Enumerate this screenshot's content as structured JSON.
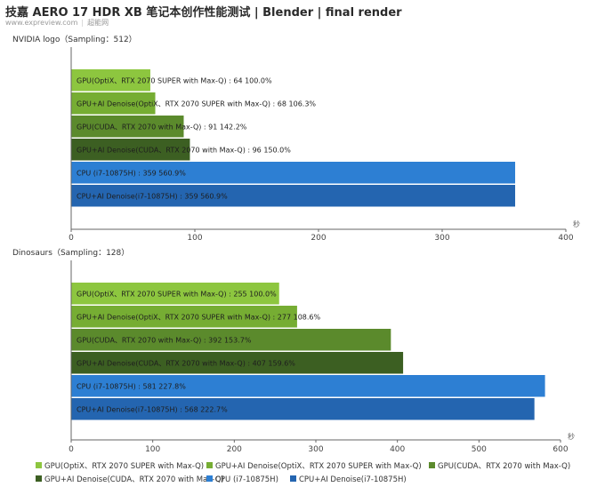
{
  "header": {
    "title": "技嘉 AERO 17 HDR XB 笔记本创作性能测试 | Blender | final render",
    "site": "www.expreview.com",
    "author": "超能网"
  },
  "legend": [
    {
      "name": "GPU(OptiX、RTX 2070 SUPER with Max-Q)",
      "color": "#8dc63f"
    },
    {
      "name": "GPU+AI Denoise(OptiX、RTX 2070 SUPER with Max-Q)",
      "color": "#76ad33"
    },
    {
      "name": "GPU(CUDA、RTX 2070 with Max-Q)",
      "color": "#5b8a2c"
    },
    {
      "name": "GPU+AI Denoise(CUDA、RTX 2070 with Max-Q)",
      "color": "#3c5f22"
    },
    {
      "name": "CPU (i7-10875H)",
      "color": "#2d7fd3"
    },
    {
      "name": "CPU+AI Denoise(i7-10875H)",
      "color": "#2465b0"
    }
  ],
  "chart_data": [
    {
      "type": "bar",
      "orientation": "horizontal",
      "title": "NVIDIA logo（Sampling：512）",
      "unit": "秒",
      "xlim": [
        0,
        400
      ],
      "xticks": [
        "0",
        "100",
        "200",
        "300",
        "400"
      ],
      "grid": false,
      "legend": "bottom",
      "bars": [
        {
          "label": "GPU(OptiX、RTX 2070 SUPER with Max-Q) : 64  100.0%",
          "value": 64,
          "percent": "100.0%"
        },
        {
          "label": "GPU+AI Denoise(OptiX、RTX 2070 SUPER with Max-Q) : 68  106.3%",
          "value": 68,
          "percent": "106.3%"
        },
        {
          "label": "GPU(CUDA、RTX 2070 with Max-Q) : 91  142.2%",
          "value": 91,
          "percent": "142.2%"
        },
        {
          "label": "GPU+AI Denoise(CUDA、RTX 2070 with Max-Q) : 96  150.0%",
          "value": 96,
          "percent": "150.0%"
        },
        {
          "label": "CPU (i7-10875H) : 359  560.9%",
          "value": 359,
          "percent": "560.9%"
        },
        {
          "label": "CPU+AI Denoise(i7-10875H) : 359  560.9%",
          "value": 359,
          "percent": "560.9%"
        }
      ]
    },
    {
      "type": "bar",
      "orientation": "horizontal",
      "title": "Dinosaurs（Sampling：128）",
      "unit": "秒",
      "xlim": [
        0,
        600
      ],
      "xticks": [
        "0",
        "100",
        "200",
        "300",
        "400",
        "500",
        "600"
      ],
      "grid": false,
      "legend": "bottom",
      "bars": [
        {
          "label": "GPU(OptiX、RTX 2070 SUPER with Max-Q) : 255  100.0%",
          "value": 255,
          "percent": "100.0%"
        },
        {
          "label": "GPU+AI Denoise(OptiX、RTX 2070 SUPER with Max-Q) : 277  108.6%",
          "value": 277,
          "percent": "108.6%"
        },
        {
          "label": "GPU(CUDA、RTX 2070 with Max-Q) : 392  153.7%",
          "value": 392,
          "percent": "153.7%"
        },
        {
          "label": "GPU+AI Denoise(CUDA、RTX 2070 with Max-Q) : 407  159.6%",
          "value": 407,
          "percent": "159.6%"
        },
        {
          "label": "CPU (i7-10875H) : 581  227.8%",
          "value": 581,
          "percent": "227.8%"
        },
        {
          "label": "CPU+AI Denoise(i7-10875H) : 568  222.7%",
          "value": 568,
          "percent": "222.7%"
        }
      ]
    }
  ]
}
